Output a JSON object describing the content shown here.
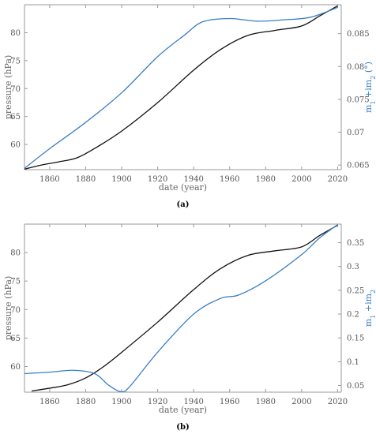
{
  "colors": {
    "primary": "#111111",
    "secondary": "#3b7fc4",
    "axis": "#9a9a9a",
    "tick_text": "#555555"
  },
  "chart_data": [
    {
      "type": "line",
      "panel_label": "(a)",
      "xlabel": "date (year)",
      "ylabel_left": "pressure (hPa)",
      "ylabel_right": "m₁ +im₂ (°)",
      "ylabel_right_parts": {
        "base": "m",
        "sub1": "1",
        "mid": " +im",
        "sub2": "2",
        "unit": " (°)"
      },
      "xlim": [
        1846,
        2022
      ],
      "ylim_left": [
        55.5,
        85
      ],
      "ylim_right": [
        0.0643,
        0.0894
      ],
      "xticks": [
        1860,
        1880,
        1900,
        1920,
        1940,
        1960,
        1980,
        2000,
        2020
      ],
      "yticks_left": [
        60,
        65,
        70,
        75,
        80
      ],
      "yticks_right": [
        0.065,
        0.07,
        0.075,
        0.08,
        0.085
      ],
      "yticks_right_labels": [
        "0.065",
        "0.07",
        "0.075",
        "0.08",
        "0.085"
      ],
      "series": [
        {
          "axis": "left",
          "color": "#111111",
          "x": [
            1846,
            1855,
            1865,
            1875,
            1885,
            1900,
            1920,
            1940,
            1955,
            1970,
            1985,
            2000,
            2010,
            2020
          ],
          "y": [
            55.6,
            56.3,
            56.9,
            57.6,
            59.3,
            62.4,
            67.5,
            73.3,
            77.0,
            79.5,
            80.4,
            81.2,
            83.0,
            84.8
          ]
        },
        {
          "axis": "right",
          "color": "#3b7fc4",
          "x": [
            1846,
            1860,
            1880,
            1900,
            1920,
            1935,
            1945,
            1960,
            1975,
            1990,
            2005,
            2020
          ],
          "y": [
            0.0645,
            0.0675,
            0.0715,
            0.076,
            0.0815,
            0.0848,
            0.0868,
            0.0873,
            0.0869,
            0.0871,
            0.0875,
            0.089
          ]
        }
      ]
    },
    {
      "type": "line",
      "panel_label": "(b)",
      "xlabel": "date (year)",
      "ylabel_left": "pressure (hPa)",
      "ylabel_right": "m₁ +im₂",
      "ylabel_right_parts": {
        "base": "m",
        "sub1": "1",
        "mid": " +im",
        "sub2": "2",
        "unit": ""
      },
      "xlim": [
        1846,
        2022
      ],
      "ylim_left": [
        55.5,
        85
      ],
      "ylim_right": [
        0.036,
        0.389
      ],
      "xticks": [
        1860,
        1880,
        1900,
        1920,
        1940,
        1960,
        1980,
        2000,
        2020
      ],
      "yticks_left": [
        60,
        65,
        70,
        75,
        80
      ],
      "yticks_right": [
        0.05,
        0.1,
        0.15,
        0.2,
        0.25,
        0.3,
        0.35
      ],
      "yticks_right_labels": [
        "0.05",
        "0.1",
        "0.15",
        "0.2",
        "0.25",
        "0.3",
        "0.35"
      ],
      "series": [
        {
          "axis": "left",
          "color": "#111111",
          "x": [
            1850,
            1860,
            1870,
            1880,
            1890,
            1900,
            1920,
            1940,
            1955,
            1970,
            1985,
            2000,
            2010,
            2020
          ],
          "y": [
            55.7,
            56.2,
            56.8,
            58.0,
            60.0,
            62.5,
            67.8,
            73.5,
            77.2,
            79.5,
            80.3,
            81.0,
            83.0,
            84.8
          ]
        },
        {
          "axis": "right",
          "color": "#3b7fc4",
          "x": [
            1846,
            1860,
            1873,
            1885,
            1893,
            1900,
            1905,
            1920,
            1940,
            1955,
            1965,
            1980,
            2000,
            2010,
            2020
          ],
          "y": [
            0.075,
            0.078,
            0.082,
            0.075,
            0.05,
            0.037,
            0.05,
            0.12,
            0.2,
            0.233,
            0.24,
            0.27,
            0.325,
            0.36,
            0.388
          ]
        }
      ]
    }
  ]
}
